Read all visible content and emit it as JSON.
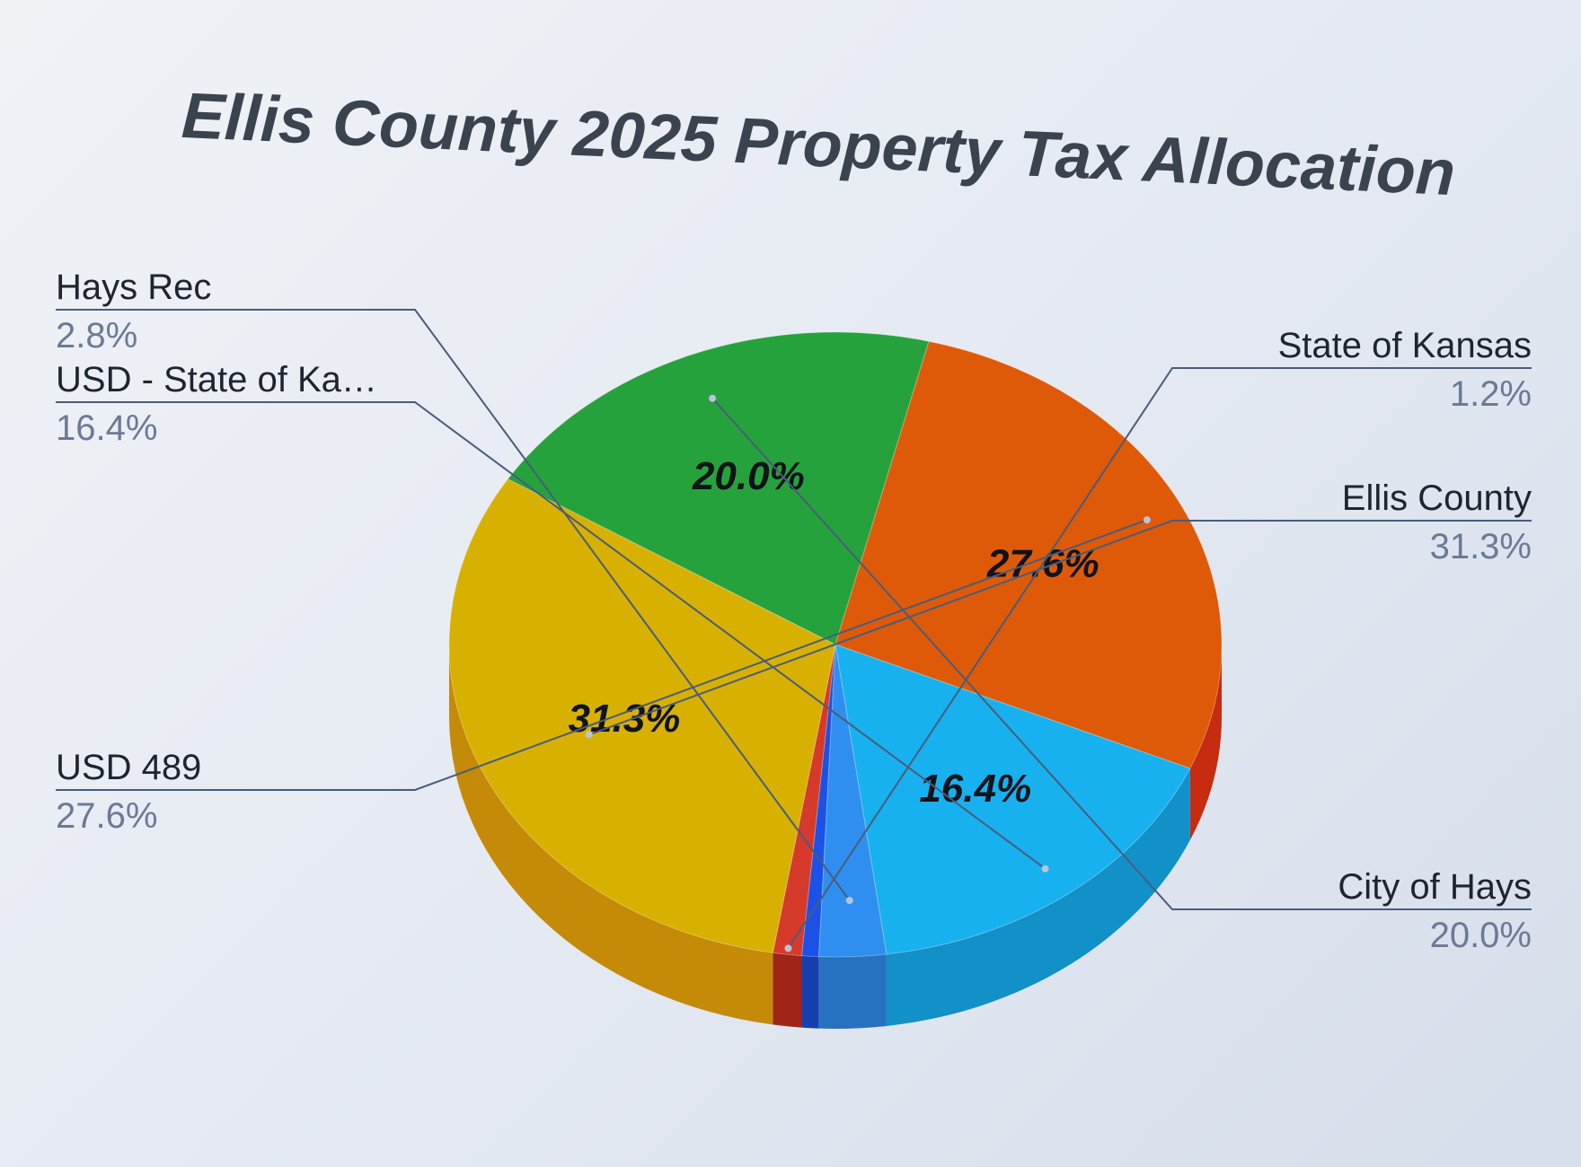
{
  "chart_data": {
    "type": "pie",
    "title": "Ellis County 2025 Property Tax Allocation",
    "slices": [
      {
        "name": "State of Kansas",
        "value": 1.2,
        "label": "1.2%",
        "color": "#d63a2a",
        "side_color": "#a02518",
        "inner_label": ""
      },
      {
        "name": "Ellis County",
        "value": 31.3,
        "label": "31.3%",
        "color": "#d8b100",
        "side_color": "#c58a08",
        "inner_label": "31.3%"
      },
      {
        "name": "City of Hays",
        "value": 20.0,
        "label": "20.0%",
        "color": "#26a23d",
        "side_color": "#1f7e30",
        "inner_label": "20.0%"
      },
      {
        "name": "USD 489",
        "value": 27.6,
        "label": "27.6%",
        "color": "#de5a08",
        "side_color": "#c72b10",
        "inner_label": "27.6%"
      },
      {
        "name": "USD - State of Ka…",
        "value": 16.4,
        "label": "16.4%",
        "color": "#17b1ef",
        "side_color": "#1290c8",
        "inner_label": "16.4%"
      },
      {
        "name": "Hays Rec",
        "value": 2.8,
        "label": "2.8%",
        "color": "#2f8ff0",
        "side_color": "#2672c0",
        "inner_label": ""
      },
      {
        "name": "",
        "value": 0.7,
        "label": "",
        "color": "#1a52e6",
        "side_color": "#1640b0",
        "inner_label": ""
      }
    ],
    "legend_placement": "labels-outside-with-leader-lines",
    "grid": false
  }
}
